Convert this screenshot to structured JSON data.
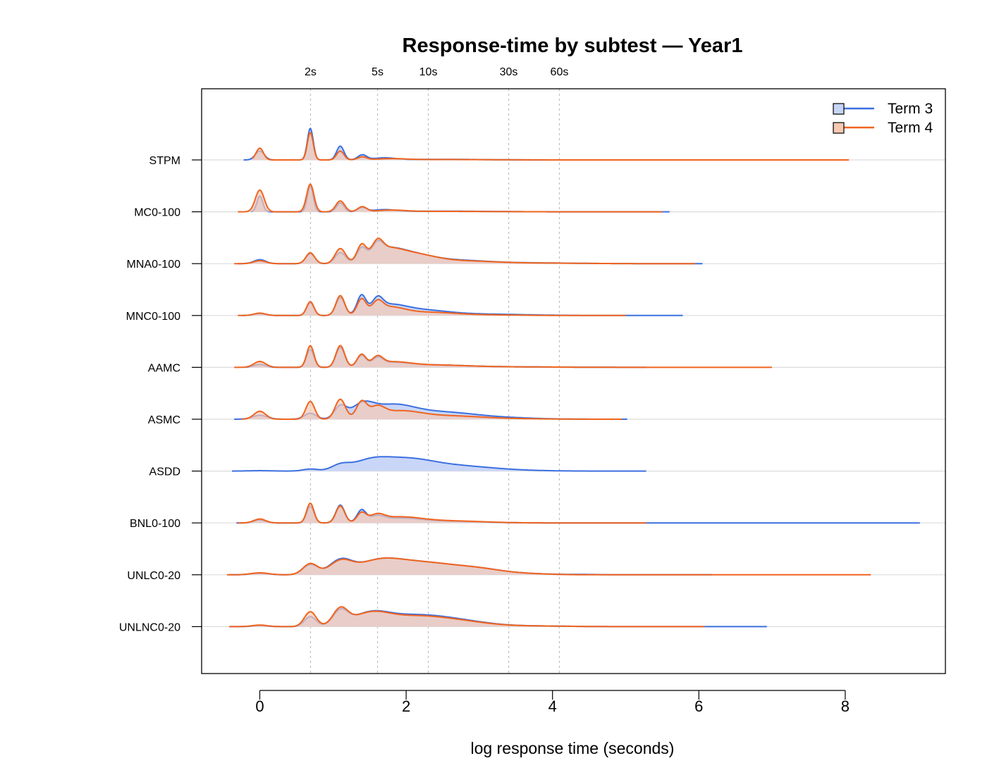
{
  "chart_data": {
    "type": "area",
    "title": "Response-time by subtest — Year1",
    "xlabel": "log response time (seconds)",
    "ylabel": "",
    "xlim": [
      -0.8,
      9.4
    ],
    "x_ticks": [
      0,
      2,
      4,
      6,
      8
    ],
    "x_tick_labels": [
      "0",
      "2",
      "4",
      "6",
      "8"
    ],
    "top_axis": {
      "labels": [
        "2s",
        "5s",
        "10s",
        "30s",
        "60s"
      ],
      "values": [
        0.693,
        1.609,
        2.303,
        3.401,
        4.094
      ]
    },
    "legend": {
      "position": "top-right"
    },
    "grid": false,
    "categories": [
      "STPM",
      "MC0-100",
      "MNA0-100",
      "MNC0-100",
      "AAMC",
      "ASMC",
      "ASDD",
      "BNL0-100",
      "UNLC0-20",
      "UNLNC0-20"
    ],
    "series": [
      {
        "name": "Term 3",
        "line_color": "#3b6fe0",
        "fill_color": "#c6d4f7",
        "ranges": [
          [
            -0.22,
            5.35
          ],
          [
            -0.12,
            5.6
          ],
          [
            -0.3,
            6.05
          ],
          [
            -0.25,
            5.78
          ],
          [
            -0.2,
            5.28
          ],
          [
            -0.35,
            5.02
          ],
          [
            -0.38,
            5.28
          ],
          [
            -0.32,
            9.02
          ],
          [
            -0.42,
            6.18
          ],
          [
            -0.4,
            6.93
          ]
        ],
        "peaks": [
          [
            [
              0,
              0.45,
              0.06
            ],
            [
              0.69,
              1.6,
              0.04
            ],
            [
              1.1,
              0.7,
              0.05
            ],
            [
              1.4,
              0.25,
              0.06
            ],
            [
              1.7,
              0.1,
              0.15
            ],
            [
              2.5,
              0.03,
              0.5
            ]
          ],
          [
            [
              0,
              0.8,
              0.04
            ],
            [
              0.69,
              1.3,
              0.04
            ],
            [
              1.1,
              0.45,
              0.05
            ],
            [
              1.4,
              0.2,
              0.06
            ],
            [
              1.7,
              0.1,
              0.15
            ],
            [
              2.5,
              0.03,
              0.6
            ]
          ],
          [
            [
              0,
              0.2,
              0.08
            ],
            [
              0.69,
              0.5,
              0.06
            ],
            [
              1.1,
              0.55,
              0.07
            ],
            [
              1.39,
              0.6,
              0.06
            ],
            [
              1.61,
              0.5,
              0.07
            ],
            [
              1.7,
              0.55,
              0.22
            ],
            [
              2.05,
              0.45,
              0.3
            ],
            [
              2.7,
              0.15,
              0.4
            ],
            [
              3.6,
              0.04,
              0.6
            ]
          ],
          [
            [
              0,
              0.1,
              0.08
            ],
            [
              0.69,
              0.65,
              0.05
            ],
            [
              1.1,
              0.9,
              0.06
            ],
            [
              1.39,
              0.9,
              0.06
            ],
            [
              1.61,
              0.55,
              0.07
            ],
            [
              1.75,
              0.45,
              0.23
            ],
            [
              2.2,
              0.25,
              0.35
            ],
            [
              3.0,
              0.07,
              0.6
            ]
          ],
          [
            [
              0,
              0.15,
              0.08
            ],
            [
              0.69,
              0.9,
              0.05
            ],
            [
              1.1,
              1.0,
              0.06
            ],
            [
              1.39,
              0.55,
              0.06
            ],
            [
              1.61,
              0.35,
              0.07
            ],
            [
              1.8,
              0.22,
              0.25
            ],
            [
              2.4,
              0.1,
              0.4
            ],
            [
              3.2,
              0.03,
              0.7
            ]
          ],
          [
            [
              0,
              0.2,
              0.1
            ],
            [
              0.69,
              0.3,
              0.08
            ],
            [
              1.1,
              0.6,
              0.08
            ],
            [
              1.4,
              0.6,
              0.15
            ],
            [
              1.8,
              0.65,
              0.3
            ],
            [
              2.5,
              0.35,
              0.45
            ],
            [
              3.4,
              0.06,
              0.4
            ]
          ],
          [
            [
              0,
              0.02,
              0.15
            ],
            [
              0.69,
              0.1,
              0.1
            ],
            [
              1.1,
              0.25,
              0.12
            ],
            [
              1.5,
              0.45,
              0.25
            ],
            [
              2.0,
              0.55,
              0.35
            ],
            [
              2.7,
              0.25,
              0.45
            ],
            [
              3.5,
              0.03,
              0.4
            ]
          ],
          [
            [
              0,
              0.15,
              0.08
            ],
            [
              0.69,
              0.85,
              0.05
            ],
            [
              1.1,
              0.9,
              0.06
            ],
            [
              1.39,
              0.6,
              0.06
            ],
            [
              1.6,
              0.25,
              0.1
            ],
            [
              1.9,
              0.22,
              0.3
            ],
            [
              2.6,
              0.08,
              0.45
            ]
          ],
          [
            [
              0,
              0.08,
              0.12
            ],
            [
              0.69,
              0.5,
              0.1
            ],
            [
              1.1,
              0.65,
              0.15
            ],
            [
              1.6,
              0.55,
              0.3
            ],
            [
              2.2,
              0.6,
              0.45
            ],
            [
              3.0,
              0.25,
              0.35
            ],
            [
              3.7,
              0.04,
              0.3
            ],
            [
              4.4,
              0.015,
              0.25
            ]
          ],
          [
            [
              0,
              0.06,
              0.1
            ],
            [
              0.69,
              0.5,
              0.08
            ],
            [
              1.1,
              0.7,
              0.1
            ],
            [
              1.5,
              0.55,
              0.25
            ],
            [
              2.1,
              0.55,
              0.45
            ],
            [
              2.8,
              0.2,
              0.4
            ],
            [
              3.8,
              0.03,
              0.4
            ]
          ]
        ]
      },
      {
        "name": "Term 4",
        "line_color": "#f0641e",
        "fill_color": "#f7c9b3",
        "ranges": [
          [
            -0.1,
            8.05
          ],
          [
            -0.3,
            5.5
          ],
          [
            -0.35,
            5.95
          ],
          [
            -0.3,
            5.0
          ],
          [
            -0.35,
            7.0
          ],
          [
            -0.25,
            4.95
          ],
          null,
          [
            -0.3,
            5.28
          ],
          [
            -0.45,
            8.35
          ],
          [
            -0.42,
            6.08
          ]
        ],
        "peaks": [
          [
            [
              0,
              0.6,
              0.05
            ],
            [
              0.69,
              1.4,
              0.04
            ],
            [
              1.1,
              0.45,
              0.05
            ],
            [
              1.4,
              0.15,
              0.06
            ],
            [
              1.8,
              0.06,
              0.2
            ],
            [
              2.6,
              0.02,
              0.6
            ]
          ],
          [
            [
              0,
              1.1,
              0.06
            ],
            [
              0.69,
              1.4,
              0.05
            ],
            [
              1.1,
              0.55,
              0.06
            ],
            [
              1.4,
              0.25,
              0.06
            ],
            [
              1.8,
              0.08,
              0.2
            ],
            [
              2.6,
              0.02,
              0.6
            ]
          ],
          [
            [
              0,
              0.15,
              0.08
            ],
            [
              0.69,
              0.55,
              0.06
            ],
            [
              1.1,
              0.75,
              0.07
            ],
            [
              1.39,
              0.75,
              0.06
            ],
            [
              1.61,
              0.6,
              0.07
            ],
            [
              1.7,
              0.6,
              0.22
            ],
            [
              2.1,
              0.45,
              0.3
            ],
            [
              2.8,
              0.12,
              0.4
            ],
            [
              3.7,
              0.03,
              0.6
            ]
          ],
          [
            [
              0,
              0.12,
              0.08
            ],
            [
              0.69,
              0.7,
              0.05
            ],
            [
              1.1,
              1.0,
              0.06
            ],
            [
              1.39,
              0.75,
              0.06
            ],
            [
              1.61,
              0.45,
              0.07
            ],
            [
              1.75,
              0.4,
              0.22
            ],
            [
              2.3,
              0.15,
              0.35
            ],
            [
              3.0,
              0.03,
              0.5
            ]
          ],
          [
            [
              0,
              0.3,
              0.08
            ],
            [
              0.69,
              1.1,
              0.05
            ],
            [
              1.1,
              1.1,
              0.06
            ],
            [
              1.39,
              0.6,
              0.06
            ],
            [
              1.61,
              0.4,
              0.07
            ],
            [
              1.8,
              0.25,
              0.25
            ],
            [
              2.4,
              0.1,
              0.4
            ],
            [
              3.2,
              0.03,
              0.7
            ]
          ],
          [
            [
              0,
              0.4,
              0.08
            ],
            [
              0.69,
              0.9,
              0.06
            ],
            [
              1.1,
              1.0,
              0.07
            ],
            [
              1.39,
              0.8,
              0.07
            ],
            [
              1.6,
              0.45,
              0.1
            ],
            [
              1.9,
              0.4,
              0.3
            ],
            [
              2.6,
              0.15,
              0.4
            ],
            [
              3.3,
              0.03,
              0.5
            ]
          ],
          null,
          [
            [
              0,
              0.2,
              0.08
            ],
            [
              0.69,
              1.0,
              0.05
            ],
            [
              1.1,
              0.85,
              0.06
            ],
            [
              1.39,
              0.45,
              0.06
            ],
            [
              1.6,
              0.3,
              0.1
            ],
            [
              1.9,
              0.28,
              0.3
            ],
            [
              2.6,
              0.1,
              0.45
            ]
          ],
          [
            [
              0,
              0.1,
              0.12
            ],
            [
              0.69,
              0.55,
              0.1
            ],
            [
              1.1,
              0.6,
              0.15
            ],
            [
              1.6,
              0.55,
              0.3
            ],
            [
              2.2,
              0.6,
              0.45
            ],
            [
              3.0,
              0.25,
              0.35
            ],
            [
              3.7,
              0.04,
              0.3
            ]
          ],
          [
            [
              0,
              0.08,
              0.1
            ],
            [
              0.69,
              0.75,
              0.08
            ],
            [
              1.1,
              0.8,
              0.1
            ],
            [
              1.5,
              0.55,
              0.25
            ],
            [
              2.1,
              0.5,
              0.45
            ],
            [
              2.8,
              0.18,
              0.4
            ],
            [
              3.8,
              0.03,
              0.4
            ]
          ]
        ]
      }
    ]
  }
}
